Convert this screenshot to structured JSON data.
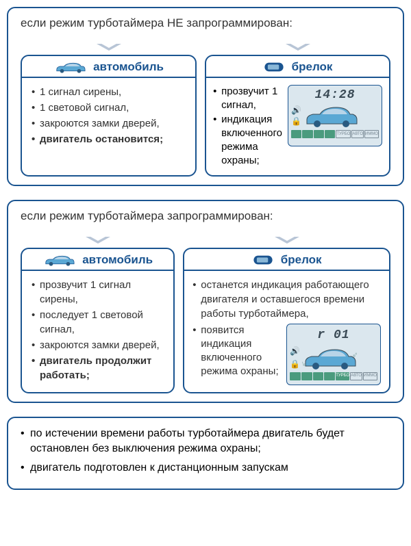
{
  "colors": {
    "border": "#1a5490",
    "accent": "#1a5490",
    "lcd_bg": "#dbe7ee",
    "lcd_fg": "#3a4a55",
    "tag_green": "#4a9b7e",
    "car_body": "#5aa8d4",
    "car_dark": "#2a5a80"
  },
  "section1": {
    "title": "если режим турботаймера НЕ запрограммирован:",
    "car_label": "автомобиль",
    "fob_label": "брелок",
    "car_items": [
      {
        "text": "1 сигнал сирены,"
      },
      {
        "text": "1 световой сигнал,"
      },
      {
        "text": "закроются замки дверей,"
      },
      {
        "text": "двигатель остановится;",
        "bold": true
      }
    ],
    "fob_items": [
      {
        "text": "прозвучит 1 сигнал,"
      },
      {
        "text": "индикация включенного режима охраны;"
      }
    ],
    "lcd": {
      "time": "14:28",
      "tags": [
        "",
        "",
        "",
        "",
        "ТУРБО",
        "АВТО",
        "ИММО"
      ],
      "tag_styles": [
        "solid",
        "solid",
        "solid",
        "solid",
        "outline",
        "outline",
        "outline"
      ]
    }
  },
  "section2": {
    "title": "если режим турботаймера запрограммирован:",
    "car_label": "автомобиль",
    "fob_label": "брелок",
    "car_items": [
      {
        "text": "прозвучит 1 сигнал сирены,"
      },
      {
        "text": "последует 1 световой сигнал,"
      },
      {
        "text": "закроются замки дверей,"
      },
      {
        "text": "двигатель продолжит работать;",
        "bold": true
      }
    ],
    "fob_items": [
      {
        "text": "останется индикация работающего двигателя и оставшегося времени работы турботаймера,"
      },
      {
        "text": "появится индикация включенного режима охраны;"
      }
    ],
    "lcd": {
      "time": "r 01",
      "tags": [
        "",
        "",
        "",
        "",
        "ТУРБО",
        "АВТО",
        "ИММО"
      ],
      "tag_styles": [
        "solid",
        "solid",
        "solid",
        "solid",
        "solid",
        "outline",
        "outline"
      ]
    }
  },
  "footer": {
    "items": [
      "по истечении времени работы турботаймера двигатель будет остановлен без выключения режима охраны;",
      "двигатель подготовлен к дистанционным запускам"
    ]
  }
}
